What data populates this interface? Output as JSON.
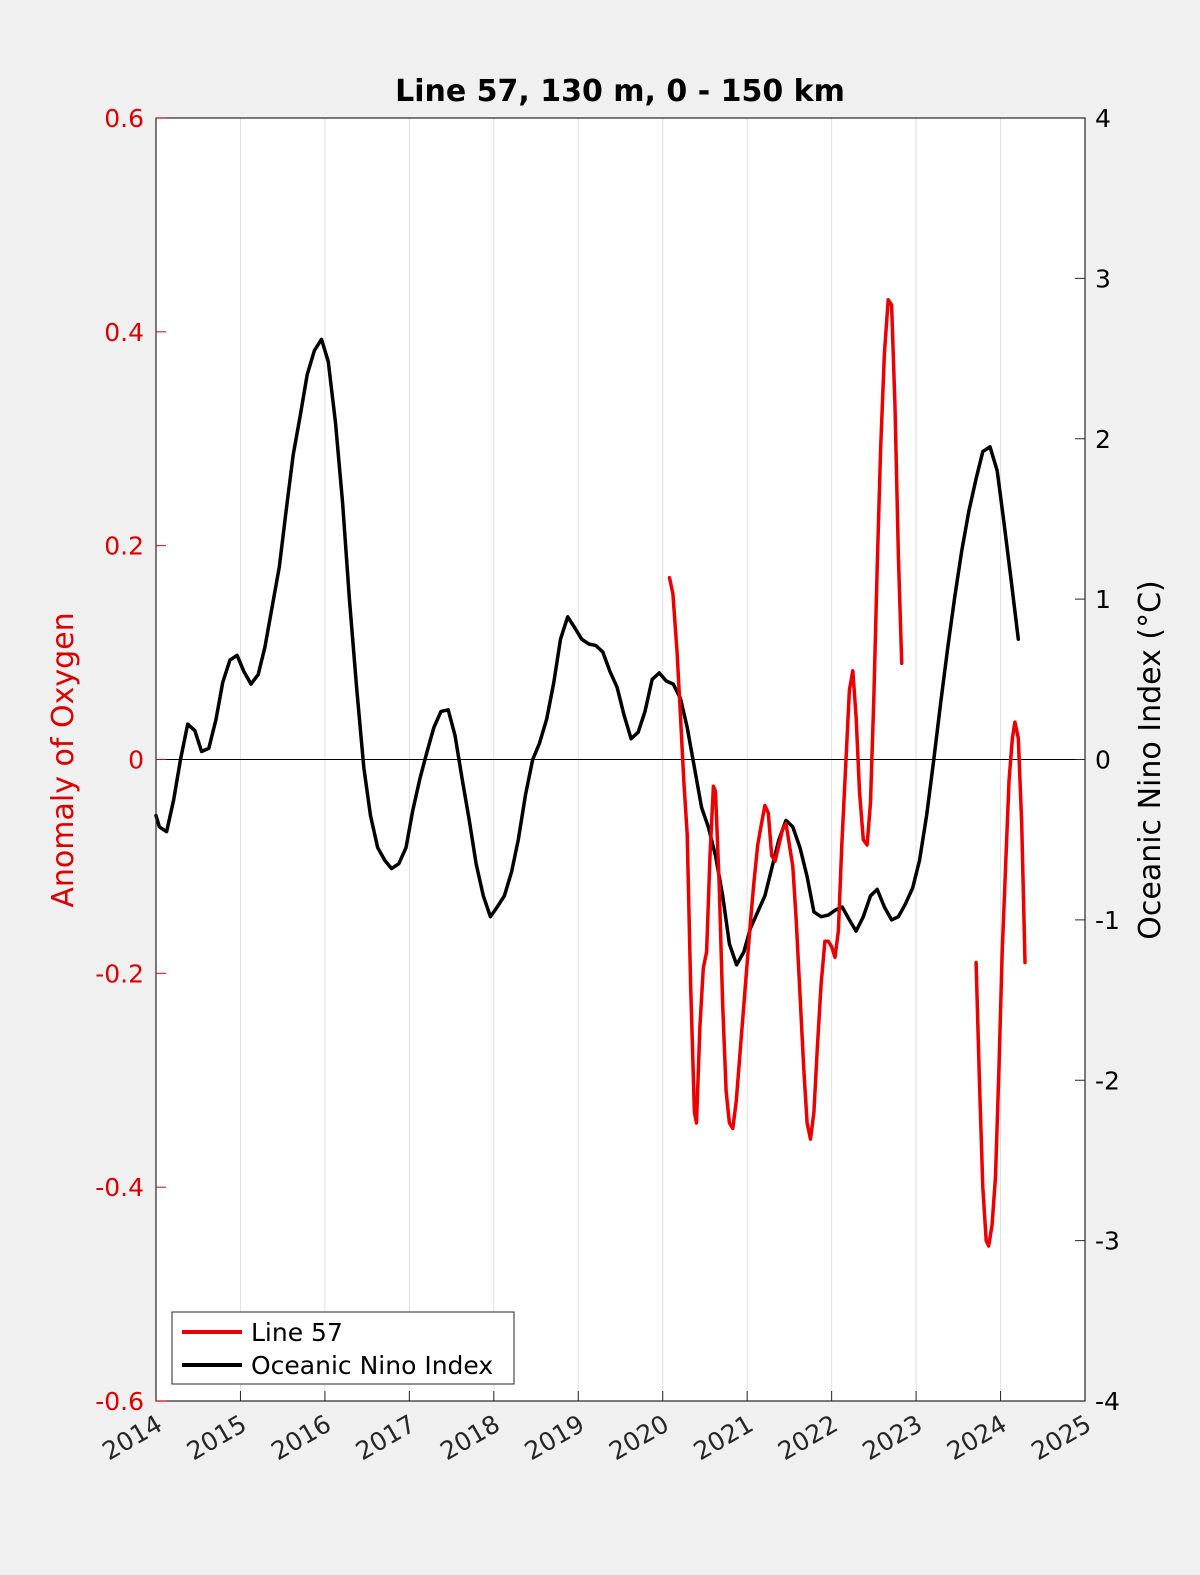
{
  "colors": {
    "background": "#f0f0f0",
    "plot_bg": "#ffffff",
    "left_axis": "#e00000",
    "right_axis": "#000000",
    "line57": "#ee0000",
    "oni": "#000000",
    "grid": "#e0e0e0"
  },
  "chart_data": {
    "type": "line",
    "title": "Line 57, 130 m, 0 - 150 km",
    "xlabel": "",
    "ylabel_left": "Anomaly of Oxygen",
    "ylabel_right": "Oceanic Nino Index (°C)",
    "xlim": [
      2014,
      2025
    ],
    "ylim_left": [
      -0.6,
      0.6
    ],
    "ylim_right": [
      -4,
      4
    ],
    "x_ticks": [
      "2014",
      "2015",
      "2016",
      "2017",
      "2018",
      "2019",
      "2020",
      "2021",
      "2022",
      "2023",
      "2024",
      "2025"
    ],
    "y_left_ticks": [
      "0.6",
      "0.4",
      "0.2",
      "0",
      "-0.2",
      "-0.4",
      "-0.6"
    ],
    "y_right_ticks": [
      "4",
      "3",
      "2",
      "1",
      "0",
      "-1",
      "-2",
      "-3",
      "-4"
    ],
    "grid": "vertical",
    "zero_line": true,
    "legend": {
      "position": "bottom-left",
      "entries": [
        "Line 57",
        "Oceanic Nino Index"
      ]
    },
    "series": [
      {
        "name": "Line 57",
        "axis": "left",
        "segments": [
          [
            [
              2020.08,
              0.17
            ],
            [
              2020.12,
              0.155
            ],
            [
              2020.17,
              0.1
            ],
            [
              2020.21,
              0.04
            ],
            [
              2020.25,
              -0.02
            ],
            [
              2020.29,
              -0.07
            ],
            [
              2020.33,
              -0.21
            ],
            [
              2020.375,
              -0.33
            ],
            [
              2020.4,
              -0.34
            ],
            [
              2020.44,
              -0.25
            ],
            [
              2020.48,
              -0.195
            ],
            [
              2020.52,
              -0.18
            ],
            [
              2020.56,
              -0.09
            ],
            [
              2020.6,
              -0.025
            ],
            [
              2020.625,
              -0.03
            ],
            [
              2020.67,
              -0.12
            ],
            [
              2020.71,
              -0.23
            ],
            [
              2020.75,
              -0.31
            ],
            [
              2020.79,
              -0.34
            ],
            [
              2020.83,
              -0.345
            ],
            [
              2020.87,
              -0.32
            ],
            [
              2020.92,
              -0.27
            ],
            [
              2020.96,
              -0.23
            ],
            [
              2021.0,
              -0.19
            ],
            [
              2021.04,
              -0.15
            ],
            [
              2021.08,
              -0.115
            ],
            [
              2021.125,
              -0.08
            ],
            [
              2021.17,
              -0.06
            ],
            [
              2021.21,
              -0.043
            ],
            [
              2021.25,
              -0.05
            ],
            [
              2021.29,
              -0.09
            ],
            [
              2021.33,
              -0.095
            ],
            [
              2021.375,
              -0.08
            ],
            [
              2021.42,
              -0.065
            ],
            [
              2021.46,
              -0.06
            ],
            [
              2021.5,
              -0.08
            ],
            [
              2021.54,
              -0.1
            ],
            [
              2021.58,
              -0.15
            ],
            [
              2021.625,
              -0.22
            ],
            [
              2021.67,
              -0.29
            ],
            [
              2021.71,
              -0.34
            ],
            [
              2021.75,
              -0.355
            ],
            [
              2021.79,
              -0.33
            ],
            [
              2021.83,
              -0.27
            ],
            [
              2021.875,
              -0.21
            ],
            [
              2021.92,
              -0.17
            ],
            [
              2021.96,
              -0.17
            ],
            [
              2022.0,
              -0.175
            ],
            [
              2022.04,
              -0.185
            ],
            [
              2022.08,
              -0.16
            ],
            [
              2022.12,
              -0.08
            ],
            [
              2022.17,
              0.0
            ],
            [
              2022.21,
              0.065
            ],
            [
              2022.25,
              0.083
            ],
            [
              2022.29,
              0.04
            ],
            [
              2022.33,
              -0.03
            ],
            [
              2022.375,
              -0.075
            ],
            [
              2022.42,
              -0.08
            ],
            [
              2022.46,
              -0.04
            ],
            [
              2022.5,
              0.06
            ],
            [
              2022.54,
              0.18
            ],
            [
              2022.58,
              0.29
            ],
            [
              2022.625,
              0.38
            ],
            [
              2022.67,
              0.43
            ],
            [
              2022.71,
              0.425
            ],
            [
              2022.75,
              0.33
            ],
            [
              2022.79,
              0.19
            ],
            [
              2022.83,
              0.09
            ]
          ],
          [
            [
              2023.71,
              -0.19
            ],
            [
              2023.75,
              -0.3
            ],
            [
              2023.79,
              -0.4
            ],
            [
              2023.83,
              -0.45
            ],
            [
              2023.86,
              -0.455
            ],
            [
              2023.9,
              -0.435
            ],
            [
              2023.94,
              -0.39
            ],
            [
              2023.98,
              -0.29
            ],
            [
              2024.02,
              -0.18
            ],
            [
              2024.06,
              -0.1
            ],
            [
              2024.1,
              -0.02
            ],
            [
              2024.14,
              0.02
            ],
            [
              2024.17,
              0.035
            ],
            [
              2024.21,
              0.02
            ],
            [
              2024.25,
              -0.06
            ],
            [
              2024.29,
              -0.19
            ]
          ]
        ]
      },
      {
        "name": "Oceanic Nino Index",
        "axis": "right",
        "points": [
          [
            2014.0,
            -0.35
          ],
          [
            2014.04,
            -0.42
          ],
          [
            2014.125,
            -0.45
          ],
          [
            2014.21,
            -0.25
          ],
          [
            2014.29,
            0.0
          ],
          [
            2014.375,
            0.22
          ],
          [
            2014.46,
            0.18
          ],
          [
            2014.54,
            0.05
          ],
          [
            2014.625,
            0.07
          ],
          [
            2014.71,
            0.25
          ],
          [
            2014.79,
            0.48
          ],
          [
            2014.875,
            0.62
          ],
          [
            2014.96,
            0.65
          ],
          [
            2015.04,
            0.55
          ],
          [
            2015.125,
            0.47
          ],
          [
            2015.21,
            0.53
          ],
          [
            2015.29,
            0.7
          ],
          [
            2015.375,
            0.95
          ],
          [
            2015.46,
            1.2
          ],
          [
            2015.54,
            1.55
          ],
          [
            2015.625,
            1.9
          ],
          [
            2015.71,
            2.15
          ],
          [
            2015.79,
            2.4
          ],
          [
            2015.875,
            2.55
          ],
          [
            2015.96,
            2.62
          ],
          [
            2016.04,
            2.48
          ],
          [
            2016.125,
            2.1
          ],
          [
            2016.21,
            1.6
          ],
          [
            2016.29,
            1.0
          ],
          [
            2016.375,
            0.45
          ],
          [
            2016.46,
            -0.05
          ],
          [
            2016.54,
            -0.35
          ],
          [
            2016.625,
            -0.55
          ],
          [
            2016.71,
            -0.63
          ],
          [
            2016.79,
            -0.68
          ],
          [
            2016.875,
            -0.65
          ],
          [
            2016.96,
            -0.55
          ],
          [
            2017.04,
            -0.32
          ],
          [
            2017.125,
            -0.12
          ],
          [
            2017.21,
            0.05
          ],
          [
            2017.29,
            0.2
          ],
          [
            2017.375,
            0.3
          ],
          [
            2017.46,
            0.31
          ],
          [
            2017.54,
            0.15
          ],
          [
            2017.625,
            -0.12
          ],
          [
            2017.71,
            -0.38
          ],
          [
            2017.79,
            -0.65
          ],
          [
            2017.875,
            -0.85
          ],
          [
            2017.96,
            -0.98
          ],
          [
            2018.04,
            -0.92
          ],
          [
            2018.125,
            -0.85
          ],
          [
            2018.21,
            -0.7
          ],
          [
            2018.29,
            -0.5
          ],
          [
            2018.375,
            -0.22
          ],
          [
            2018.46,
            0.0
          ],
          [
            2018.54,
            0.1
          ],
          [
            2018.625,
            0.25
          ],
          [
            2018.71,
            0.48
          ],
          [
            2018.79,
            0.75
          ],
          [
            2018.875,
            0.89
          ],
          [
            2018.96,
            0.82
          ],
          [
            2019.04,
            0.75
          ],
          [
            2019.125,
            0.72
          ],
          [
            2019.21,
            0.71
          ],
          [
            2019.29,
            0.67
          ],
          [
            2019.375,
            0.55
          ],
          [
            2019.46,
            0.45
          ],
          [
            2019.54,
            0.28
          ],
          [
            2019.625,
            0.13
          ],
          [
            2019.71,
            0.17
          ],
          [
            2019.79,
            0.3
          ],
          [
            2019.875,
            0.5
          ],
          [
            2019.96,
            0.54
          ],
          [
            2020.04,
            0.49
          ],
          [
            2020.125,
            0.47
          ],
          [
            2020.21,
            0.38
          ],
          [
            2020.29,
            0.2
          ],
          [
            2020.375,
            -0.05
          ],
          [
            2020.46,
            -0.3
          ],
          [
            2020.54,
            -0.42
          ],
          [
            2020.625,
            -0.6
          ],
          [
            2020.71,
            -0.85
          ],
          [
            2020.79,
            -1.15
          ],
          [
            2020.875,
            -1.28
          ],
          [
            2020.96,
            -1.2
          ],
          [
            2021.04,
            -1.05
          ],
          [
            2021.125,
            -0.95
          ],
          [
            2021.21,
            -0.85
          ],
          [
            2021.29,
            -0.68
          ],
          [
            2021.375,
            -0.5
          ],
          [
            2021.46,
            -0.38
          ],
          [
            2021.54,
            -0.42
          ],
          [
            2021.625,
            -0.55
          ],
          [
            2021.71,
            -0.73
          ],
          [
            2021.79,
            -0.95
          ],
          [
            2021.875,
            -0.98
          ],
          [
            2021.96,
            -0.97
          ],
          [
            2022.04,
            -0.94
          ],
          [
            2022.125,
            -0.92
          ],
          [
            2022.21,
            -1.0
          ],
          [
            2022.29,
            -1.07
          ],
          [
            2022.375,
            -0.98
          ],
          [
            2022.46,
            -0.85
          ],
          [
            2022.54,
            -0.81
          ],
          [
            2022.625,
            -0.92
          ],
          [
            2022.71,
            -1.0
          ],
          [
            2022.79,
            -0.98
          ],
          [
            2022.875,
            -0.9
          ],
          [
            2022.96,
            -0.8
          ],
          [
            2023.04,
            -0.63
          ],
          [
            2023.125,
            -0.35
          ],
          [
            2023.21,
            0.0
          ],
          [
            2023.29,
            0.35
          ],
          [
            2023.375,
            0.7
          ],
          [
            2023.46,
            1.02
          ],
          [
            2023.54,
            1.3
          ],
          [
            2023.625,
            1.55
          ],
          [
            2023.71,
            1.75
          ],
          [
            2023.79,
            1.92
          ],
          [
            2023.875,
            1.95
          ],
          [
            2023.96,
            1.8
          ],
          [
            2024.04,
            1.48
          ],
          [
            2024.125,
            1.12
          ],
          [
            2024.21,
            0.75
          ]
        ]
      }
    ]
  }
}
